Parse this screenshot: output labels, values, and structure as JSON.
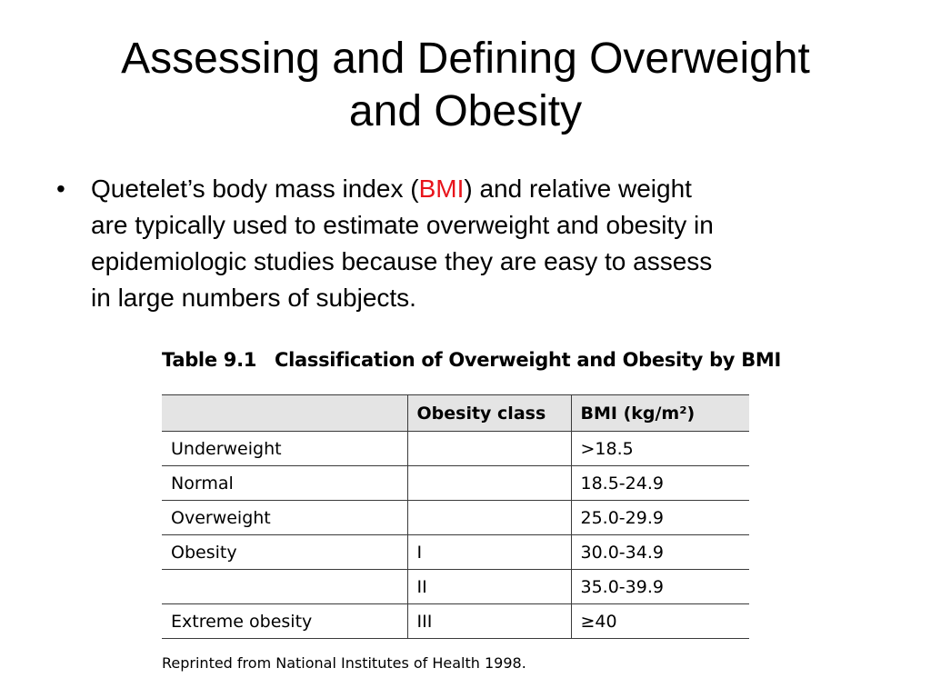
{
  "slide": {
    "title_lines": [
      "Assessing and Defining Overweight",
      "and Obesity"
    ],
    "bullet": {
      "symbol": "•",
      "line1_before": "Quetelet’s body mass index (",
      "line1_highlight": "BMI",
      "line1_after": ") and relative weight",
      "line2": "are typically used to estimate overweight and obesity in",
      "line3": "epidemiologic studies because they are easy to assess",
      "line4": "in large numbers of subjects.",
      "highlight_color": "#e8141b"
    }
  },
  "table": {
    "caption_number": "Table 9.1",
    "caption_title": "Classification of Overweight and Obesity by BMI",
    "headers": [
      "",
      "Obesity class",
      "BMI (kg/m²)"
    ],
    "rows": [
      [
        "Underweight",
        "",
        ">18.5"
      ],
      [
        "Normal",
        "",
        "18.5-24.9"
      ],
      [
        "Overweight",
        "",
        "25.0-29.9"
      ],
      [
        "Obesity",
        "I",
        "30.0-34.9"
      ],
      [
        "",
        "II",
        "35.0-39.9"
      ],
      [
        "Extreme obesity",
        "III",
        "≥40"
      ]
    ],
    "source": "Reprinted from National Institutes of Health 1998.",
    "header_bg": "#e4e4e4"
  }
}
